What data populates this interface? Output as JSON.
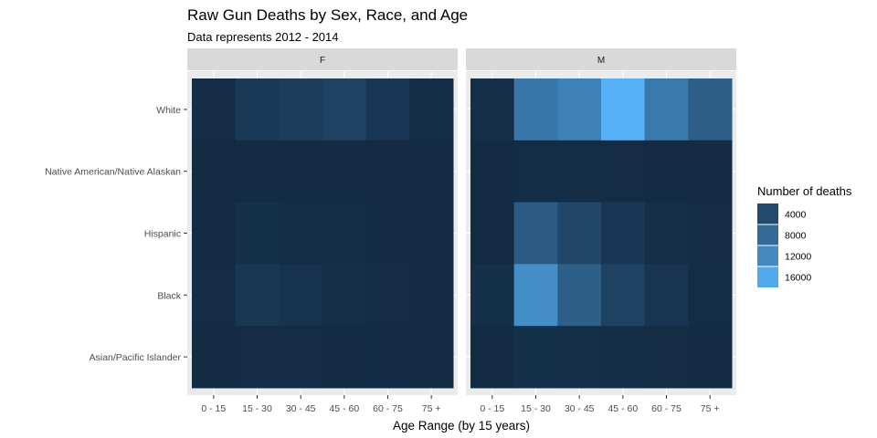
{
  "chart_data": {
    "type": "heatmap",
    "title": "Raw Gun Deaths by Sex, Race, and Age",
    "subtitle": "Data represents 2012 - 2014",
    "xlabel": "Age Range (by 15 years)",
    "ylabel": "",
    "facets": [
      "F",
      "M"
    ],
    "x_categories": [
      "0 - 15",
      "15 - 30",
      "30 - 45",
      "45 - 60",
      "60 - 75",
      "75 +"
    ],
    "y_categories": [
      "White",
      "Native American/Native Alaskan",
      "Hispanic",
      "Black",
      "Asian/Pacific Islander"
    ],
    "values": {
      "F": [
        [
          150,
          1800,
          2300,
          3000,
          1600,
          400
        ],
        [
          20,
          40,
          40,
          30,
          10,
          5
        ],
        [
          50,
          600,
          400,
          300,
          100,
          40
        ],
        [
          150,
          1500,
          900,
          500,
          200,
          70
        ],
        [
          20,
          150,
          150,
          120,
          60,
          40
        ]
      ],
      "M": [
        [
          500,
          9700,
          11000,
          17200,
          10000,
          6500
        ],
        [
          30,
          300,
          250,
          150,
          50,
          10
        ],
        [
          100,
          6200,
          3600,
          1700,
          500,
          200
        ],
        [
          600,
          12800,
          6700,
          2900,
          1200,
          300
        ],
        [
          80,
          600,
          500,
          400,
          200,
          100
        ]
      ]
    },
    "legend": {
      "title": "Number of deaths",
      "breaks": [
        4000,
        8000,
        12000,
        16000
      ],
      "labels": [
        "4000",
        "8000",
        "12000",
        "16000"
      ],
      "placement": "right"
    },
    "color_scale": {
      "low": "#132B43",
      "high": "#56B1F7",
      "limits": [
        0,
        17200
      ]
    },
    "grid": true
  }
}
